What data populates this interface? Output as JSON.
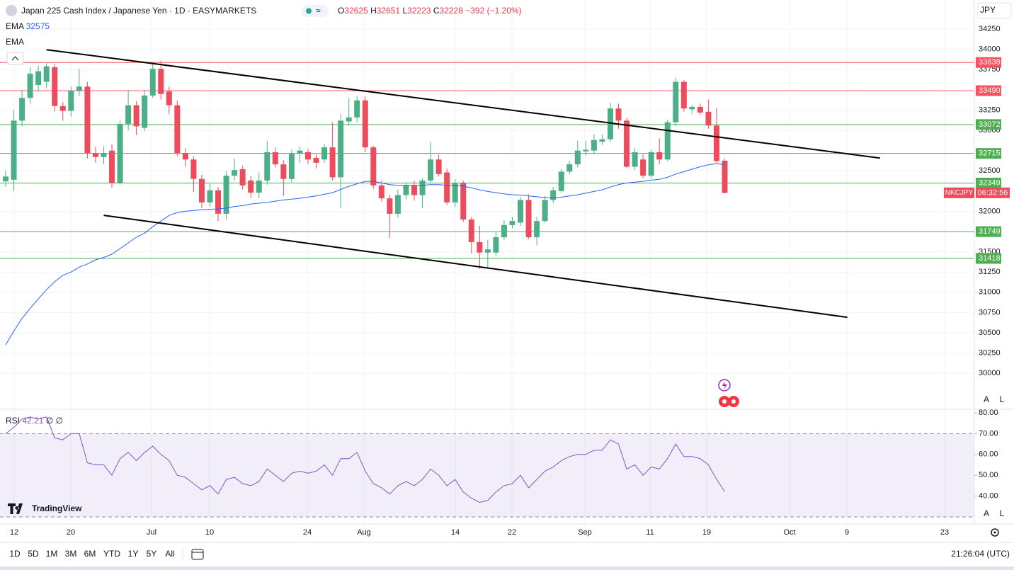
{
  "chart_data": [
    {
      "type": "candlestick",
      "title": "Japan 225 Cash Index / Japanese Yen · 1D · EASYMARKETS",
      "open": [
        32370,
        32390,
        33120,
        33400,
        33560,
        33600,
        33780,
        33300,
        33240,
        33490,
        33540,
        32720,
        32670,
        32750,
        32350,
        33080,
        33310,
        33030,
        33430,
        33760,
        33480,
        33310,
        32720,
        32640,
        32400,
        32110,
        32260,
        31970,
        32440,
        32520,
        32380,
        32230,
        32380,
        32730,
        32580,
        32400,
        32710,
        32730,
        32660,
        32640,
        32790,
        32420,
        33110,
        33160,
        33370,
        32790,
        32320,
        32160,
        31970,
        32200,
        32320,
        32200,
        32380,
        32640,
        32480,
        32110,
        32350,
        31900,
        31620,
        31490,
        31490,
        31680,
        31830,
        31860,
        32140,
        31680,
        31880,
        32140,
        32250,
        32490,
        32580,
        32740,
        32750,
        32860,
        32890,
        33270,
        33120,
        32550,
        32640,
        32440,
        32730,
        32640,
        33100,
        33600,
        33260,
        33290,
        33230,
        33060,
        32625
      ],
      "high": [
        32500,
        33250,
        33500,
        33780,
        33800,
        33830,
        33820,
        33350,
        33540,
        33760,
        33600,
        32800,
        32800,
        32830,
        33120,
        33500,
        33360,
        33500,
        33820,
        33860,
        33540,
        33370,
        32780,
        32680,
        32450,
        32340,
        32300,
        32500,
        32650,
        32560,
        32440,
        32480,
        32870,
        32790,
        32630,
        32760,
        32800,
        32770,
        32700,
        32830,
        33100,
        33200,
        33400,
        33420,
        33420,
        32810,
        32380,
        32200,
        32270,
        32360,
        32380,
        32410,
        32860,
        32700,
        32530,
        32400,
        32380,
        31930,
        31820,
        31650,
        31740,
        31890,
        31930,
        32180,
        32210,
        31930,
        32190,
        32300,
        32520,
        32620,
        32870,
        32870,
        32950,
        32950,
        33340,
        33330,
        33150,
        32780,
        32700,
        32760,
        32900,
        33130,
        33650,
        33620,
        33310,
        33330,
        33380,
        33280,
        32651
      ],
      "low": [
        32300,
        32250,
        33050,
        33330,
        33480,
        33520,
        33230,
        33120,
        33170,
        33420,
        32650,
        32600,
        32580,
        32290,
        32330,
        33000,
        32940,
        32990,
        33400,
        33380,
        33200,
        32680,
        32550,
        32240,
        32040,
        32060,
        31880,
        31900,
        32380,
        32270,
        32170,
        32160,
        32330,
        32540,
        32190,
        32360,
        32600,
        32580,
        32530,
        32600,
        32380,
        32040,
        33060,
        33100,
        32730,
        32280,
        32120,
        31670,
        31920,
        32150,
        32130,
        32040,
        32360,
        32430,
        32080,
        32050,
        31870,
        31480,
        31290,
        31300,
        31440,
        31650,
        31790,
        31820,
        31660,
        31580,
        31860,
        32100,
        32230,
        32460,
        32540,
        32690,
        32710,
        32820,
        32860,
        33020,
        32530,
        32510,
        32410,
        32400,
        32580,
        32620,
        33050,
        33230,
        33200,
        33190,
        33020,
        32600,
        32223
      ],
      "close": [
        32430,
        33120,
        33400,
        33700,
        33730,
        33790,
        33300,
        33240,
        33490,
        33540,
        32720,
        32670,
        32720,
        32350,
        33080,
        33310,
        33050,
        33430,
        33760,
        33450,
        33310,
        32720,
        32640,
        32400,
        32110,
        32260,
        31970,
        32440,
        32510,
        32320,
        32230,
        32380,
        32730,
        32580,
        32400,
        32710,
        32750,
        32640,
        32600,
        32790,
        32420,
        33120,
        33160,
        33370,
        32790,
        32320,
        32160,
        31970,
        32200,
        32320,
        32200,
        32380,
        32640,
        32460,
        32110,
        32350,
        31900,
        31620,
        31490,
        31530,
        31680,
        31830,
        31880,
        32140,
        31680,
        31880,
        32140,
        32260,
        32490,
        32580,
        32750,
        32760,
        32880,
        32890,
        33270,
        33120,
        32550,
        32730,
        32440,
        32730,
        32640,
        33100,
        33600,
        33270,
        33290,
        33220,
        33060,
        32620,
        32228
      ],
      "up_color": "#4caf87",
      "down_color": "#ee4c5c",
      "series": [
        {
          "name": "EMA",
          "color": "#2962ff",
          "values": [
            30350,
            30520,
            30680,
            30800,
            30920,
            31030,
            31130,
            31210,
            31250,
            31310,
            31350,
            31400,
            31430,
            31470,
            31540,
            31610,
            31680,
            31730,
            31810,
            31880,
            31950,
            31985,
            32000,
            32010,
            32020,
            32025,
            32030,
            32040,
            32060,
            32070,
            32090,
            32100,
            32110,
            32125,
            32140,
            32150,
            32160,
            32175,
            32190,
            32210,
            32230,
            32270,
            32310,
            32340,
            32370,
            32370,
            32350,
            32330,
            32320,
            32320,
            32320,
            32320,
            32330,
            32330,
            32320,
            32320,
            32310,
            32290,
            32265,
            32245,
            32230,
            32215,
            32205,
            32200,
            32190,
            32180,
            32170,
            32165,
            32175,
            32190,
            32205,
            32225,
            32245,
            32265,
            32300,
            32330,
            32350,
            32360,
            32370,
            32385,
            32395,
            32420,
            32460,
            32490,
            32520,
            32550,
            32575,
            32590,
            32575
          ]
        }
      ],
      "levels": [
        {
          "value": 33838,
          "color": "#f7525f"
        },
        {
          "value": 33490,
          "color": "#f7525f"
        },
        {
          "value": 33072,
          "color": "#4caf50"
        },
        {
          "value": 32715,
          "color": "#4caf50"
        },
        {
          "value": 32349,
          "color": "#4caf50"
        },
        {
          "value": 31749,
          "color": "#4caf50"
        },
        {
          "value": 31418,
          "color": "#4caf50"
        }
      ],
      "trendlines": [
        {
          "x": [
            5,
            107
          ],
          "y": [
            33996,
            32658
          ],
          "color": "#000000"
        },
        {
          "x": [
            12,
            103
          ],
          "y": [
            31950,
            30691
          ],
          "color": "#000000"
        }
      ],
      "ylim": [
        29555,
        34610
      ],
      "yticks": [
        34250,
        34000,
        33750,
        33250,
        33000,
        32500,
        32000,
        31500,
        31250,
        31000,
        30750,
        30500,
        30250,
        30000
      ],
      "xtick_labels": [
        "12",
        "20",
        "Jul",
        "10",
        "24",
        "Aug",
        "14",
        "22",
        "Sep",
        "11",
        "19",
        "Oct",
        "9",
        "23"
      ],
      "grid": true,
      "change": {
        "value": -392,
        "label": "−392"
      },
      "change_pct": {
        "value": -1.2,
        "label": "(−1.20%)"
      },
      "symbol_tag": "NKCJPY",
      "countdown": "06:32:56"
    },
    {
      "type": "line",
      "series": [
        {
          "name": "RSI",
          "color": "#7e57c2",
          "values": [
            70,
            73,
            77,
            78,
            77,
            78,
            68,
            67,
            70,
            70,
            56,
            55,
            55,
            50,
            58,
            61,
            57,
            61,
            64,
            60,
            57,
            50,
            49,
            46,
            43,
            45,
            41,
            48,
            49,
            46,
            45,
            47,
            53,
            50,
            47,
            51,
            52,
            51,
            52,
            55,
            50,
            58,
            58,
            61,
            52,
            46,
            44,
            41,
            45,
            47,
            45,
            48,
            53,
            50,
            45,
            48,
            42,
            39,
            37,
            38,
            42,
            45,
            46,
            50,
            44,
            48,
            52,
            54,
            57,
            59,
            60,
            60,
            62,
            62,
            67,
            65,
            53,
            55,
            50,
            54,
            53,
            58,
            65,
            59,
            59,
            58,
            55,
            48,
            42.21
          ]
        }
      ],
      "band": [
        30,
        70
      ],
      "ylim": [
        27.3,
        81.7
      ],
      "yticks": [
        {
          "value": 80,
          "label": "80.00"
        },
        {
          "value": 70,
          "label": "70.00"
        },
        {
          "value": 60,
          "label": "60.00"
        },
        {
          "value": 50,
          "label": "50.00"
        },
        {
          "value": 40,
          "label": "40.00"
        }
      ],
      "extra": "∅ ∅"
    }
  ],
  "ui": {
    "currency": "JPY",
    "hidden_indicator": "EMA",
    "brand": "TradingView",
    "auto": "A",
    "log": "L",
    "ranges": [
      "1D",
      "5D",
      "1M",
      "3M",
      "6M",
      "YTD",
      "1Y",
      "5Y",
      "All"
    ],
    "clock": "21:26:04 (UTC)",
    "o": "O",
    "h": "H",
    "l": "L",
    "c": "C"
  }
}
